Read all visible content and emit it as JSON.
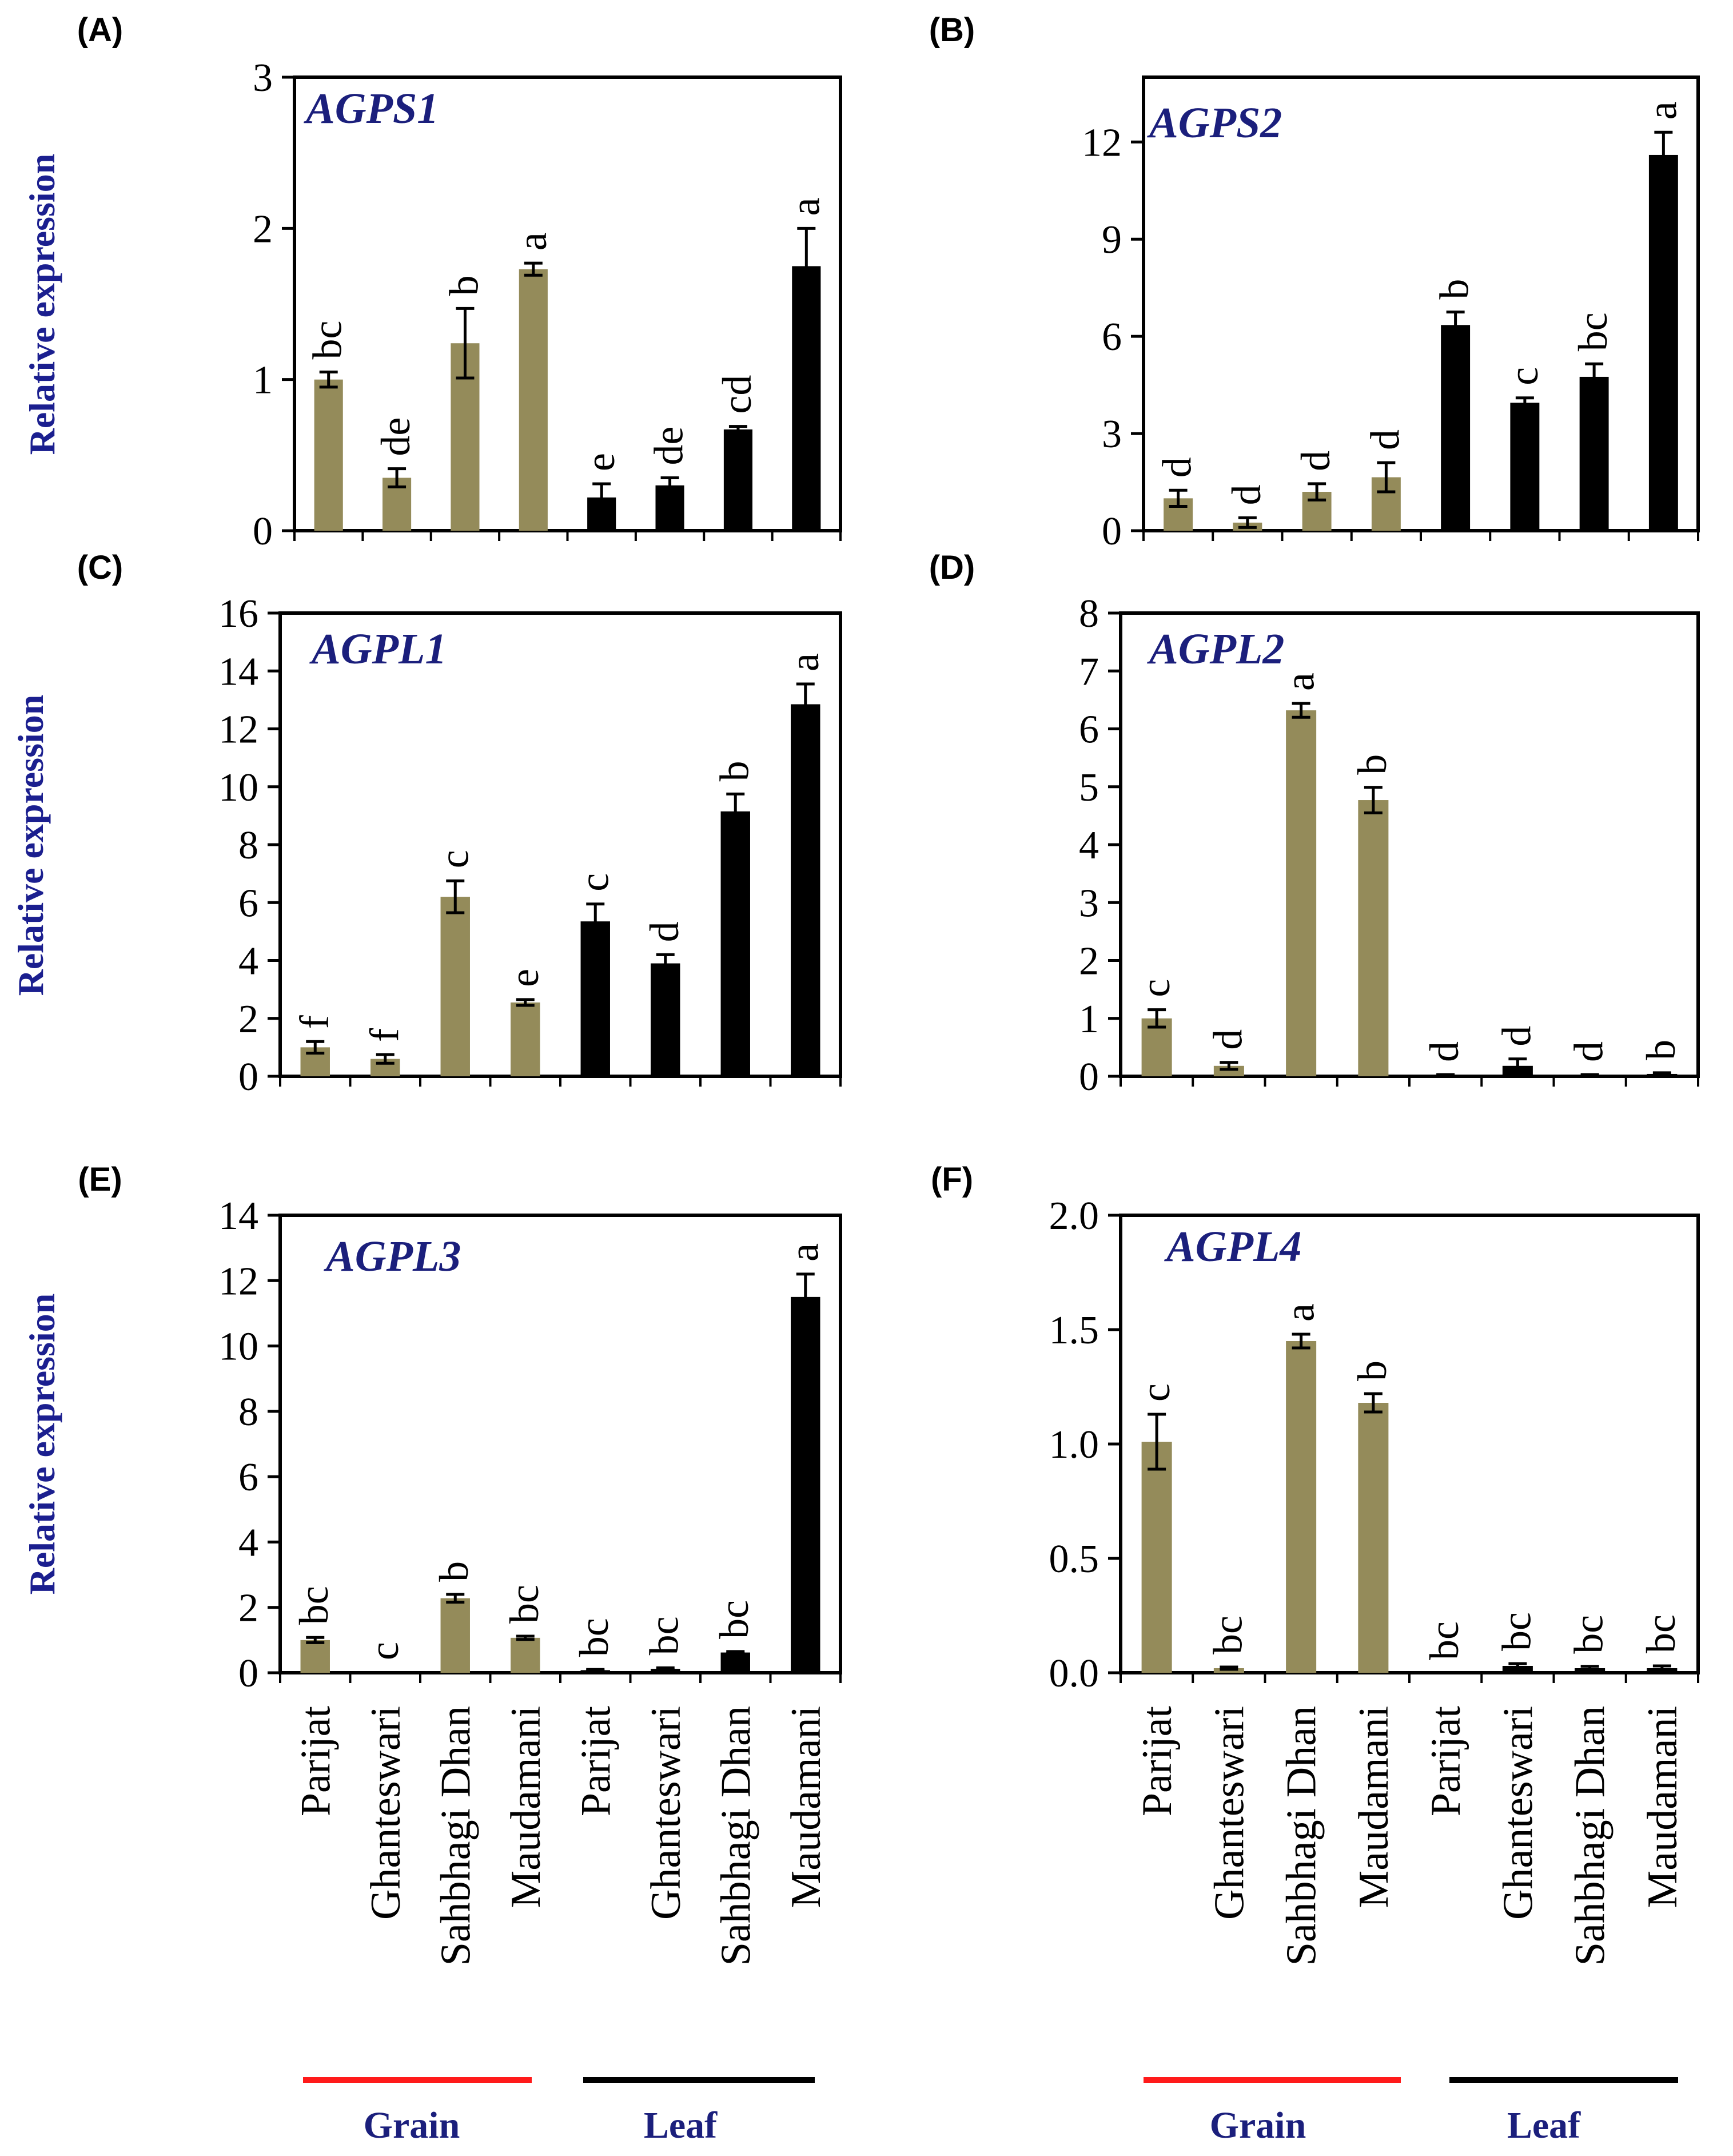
{
  "colors": {
    "grain": "#948b5a",
    "leaf": "#000000",
    "title": "#1b1f7c",
    "ylabel": "#1b1f8f",
    "grain_line": "#ff1a1a",
    "leaf_line": "#000000"
  },
  "categories": [
    "Parijat",
    "Ghanteswari",
    "Sahbhagi Dhan",
    "Maudamani",
    "Parijat",
    "Ghanteswari",
    "Sahbhagi Dhan",
    "Maudamani"
  ],
  "groups": [
    {
      "label": "Grain"
    },
    {
      "label": "Leaf"
    }
  ],
  "ylabel": "Relative expression",
  "chart_data": [
    {
      "type": "bar",
      "panel_label": "(A)",
      "title": "AGPS1",
      "ylim": [
        0,
        3
      ],
      "yticks": [
        "0",
        "1",
        "2",
        "3"
      ],
      "values": [
        1.0,
        0.35,
        1.24,
        1.73,
        0.22,
        0.3,
        0.67,
        1.75
      ],
      "errors": [
        0.05,
        0.06,
        0.23,
        0.04,
        0.09,
        0.05,
        0.02,
        0.25
      ],
      "letters": [
        "bc",
        "de",
        "b",
        "a",
        "e",
        "de",
        "cd",
        "a"
      ]
    },
    {
      "type": "bar",
      "panel_label": "(B)",
      "title": "AGPS2",
      "ylim": [
        0,
        14
      ],
      "yticks": [
        "0",
        "3",
        "6",
        "9",
        "12"
      ],
      "values": [
        1.0,
        0.25,
        1.2,
        1.65,
        6.35,
        3.95,
        4.75,
        11.6
      ],
      "errors": [
        0.25,
        0.15,
        0.25,
        0.45,
        0.4,
        0.15,
        0.4,
        0.7
      ],
      "letters": [
        "d",
        "d",
        "d",
        "d",
        "b",
        "c",
        "bc",
        "a"
      ]
    },
    {
      "type": "bar",
      "panel_label": "(C)",
      "title": "AGPL1",
      "ylim": [
        0,
        16
      ],
      "yticks": [
        "0",
        "2",
        "4",
        "6",
        "8",
        "10",
        "12",
        "14",
        "16"
      ],
      "values": [
        1.0,
        0.6,
        6.2,
        2.55,
        5.35,
        3.9,
        9.15,
        12.85
      ],
      "errors": [
        0.2,
        0.15,
        0.55,
        0.1,
        0.6,
        0.3,
        0.6,
        0.7
      ],
      "letters": [
        "f",
        "f",
        "c",
        "e",
        "c",
        "d",
        "b",
        "a"
      ]
    },
    {
      "type": "bar",
      "panel_label": "(D)",
      "title": "AGPL2",
      "ylim": [
        0,
        8
      ],
      "yticks": [
        "0",
        "1",
        "2",
        "3",
        "4",
        "5",
        "6",
        "7",
        "8"
      ],
      "values": [
        1.0,
        0.18,
        6.32,
        4.77,
        0.02,
        0.18,
        0.02,
        0.04
      ],
      "errors": [
        0.15,
        0.06,
        0.12,
        0.22,
        0.01,
        0.12,
        0.01,
        0.02
      ],
      "letters": [
        "c",
        "d",
        "a",
        "b",
        "d",
        "d",
        "d",
        "b"
      ]
    },
    {
      "type": "bar",
      "panel_label": "(E)",
      "title": "AGPL3",
      "ylim": [
        0,
        14
      ],
      "yticks": [
        "0",
        "2",
        "4",
        "6",
        "8",
        "10",
        "12",
        "14"
      ],
      "values": [
        1.0,
        0.0,
        2.28,
        1.07,
        0.08,
        0.12,
        0.62,
        11.5
      ],
      "errors": [
        0.08,
        0.0,
        0.12,
        0.05,
        0.02,
        0.03,
        0.03,
        0.7
      ],
      "letters": [
        "bc",
        "c",
        "b",
        "bc",
        "bc",
        "bc",
        "bc",
        "a"
      ]
    },
    {
      "type": "bar",
      "panel_label": "(F)",
      "title": "AGPL4",
      "ylim": [
        0,
        2.0
      ],
      "yticks": [
        "0.0",
        "0.5",
        "1.0",
        "1.5",
        "2.0"
      ],
      "values": [
        1.01,
        0.02,
        1.45,
        1.18,
        0.0,
        0.03,
        0.02,
        0.02
      ],
      "errors": [
        0.12,
        0.005,
        0.03,
        0.04,
        0.0,
        0.01,
        0.008,
        0.01
      ],
      "letters": [
        "c",
        "bc",
        "a",
        "b",
        "bc",
        "bc",
        "bc",
        "bc"
      ]
    }
  ]
}
